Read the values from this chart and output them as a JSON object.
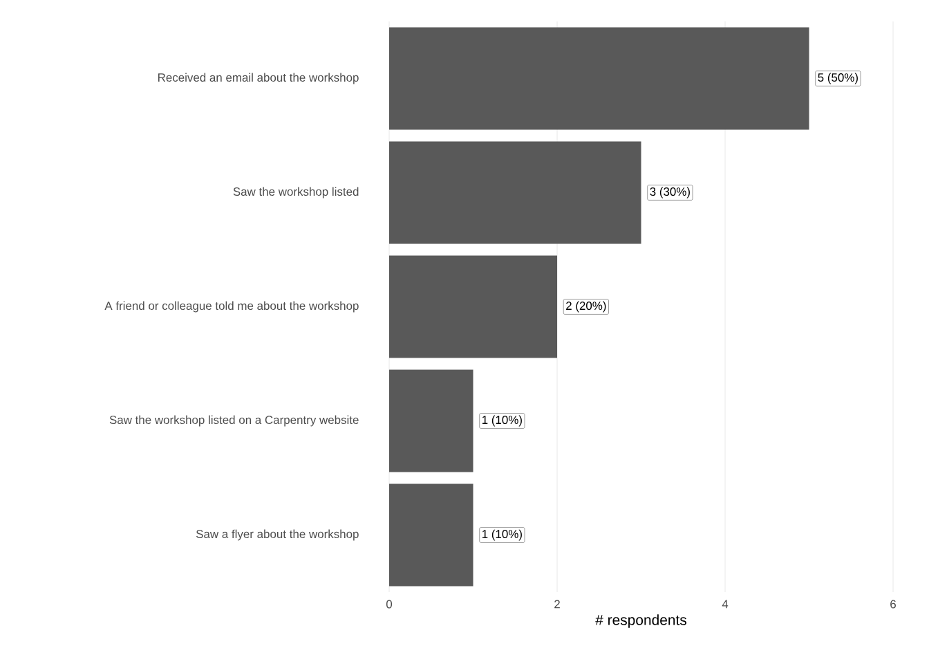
{
  "chart_data": {
    "type": "bar",
    "orientation": "horizontal",
    "categories": [
      "Received an email about the workshop",
      "Saw the workshop listed",
      "A friend or colleague told me about the workshop",
      "Saw the workshop listed on a Carpentry website",
      "Saw a flyer about the workshop"
    ],
    "values": [
      5,
      3,
      2,
      1,
      1
    ],
    "value_labels": [
      "5 (50%)",
      "3 (30%)",
      "2 (20%)",
      "1 (10%)",
      "1 (10%)"
    ],
    "color": "#595959",
    "xlabel": "# respondents",
    "xlim": [
      0,
      6
    ],
    "xticks": [
      0,
      2,
      4,
      6
    ],
    "grid": "x"
  }
}
